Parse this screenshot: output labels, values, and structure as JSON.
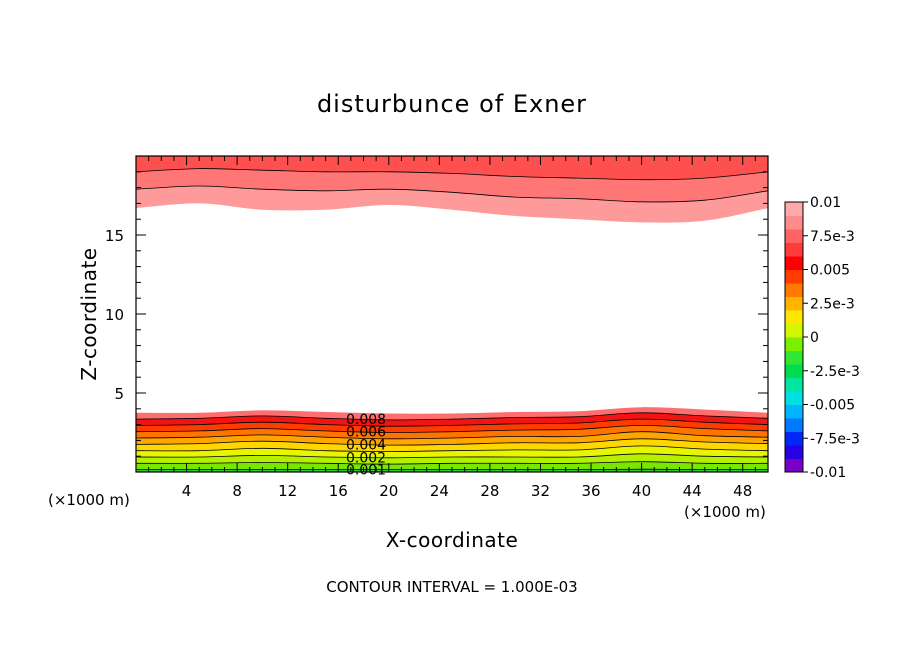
{
  "chart_data": {
    "type": "contour",
    "title": "disturbunce of Exner",
    "xlabel": "X-coordinate",
    "ylabel": "Z-coordinate",
    "x_unit_left": "(×1000 m)",
    "x_unit_right": "(×1000 m)",
    "xlim": [
      0,
      50
    ],
    "ylim": [
      0,
      20
    ],
    "x_ticks": [
      4,
      8,
      12,
      16,
      20,
      24,
      28,
      32,
      36,
      40,
      44,
      48
    ],
    "y_ticks": [
      5,
      10,
      15
    ],
    "footer": "CONTOUR INTERVAL = 1.000E-03",
    "contour_interval": 0.001,
    "contour_labels": [
      "0.008",
      "0.006",
      "0.004",
      "0.002",
      "0.001"
    ],
    "colorbar": {
      "min": -0.01,
      "max": 0.01,
      "tick_labels": [
        "0.01",
        "7.5e-3",
        "0.005",
        "2.5e-3",
        "0",
        "-2.5e-3",
        "-0.005",
        "-7.5e-3",
        "-0.01"
      ],
      "colors": [
        "#7a00c8",
        "#2800e6",
        "#0028f5",
        "#0078ff",
        "#00b4ff",
        "#00e0e0",
        "#00e6a0",
        "#00dc50",
        "#32e632",
        "#78f000",
        "#d2f500",
        "#ffe600",
        "#ffb400",
        "#ff7800",
        "#ff3c00",
        "#ff0000",
        "#ff3c3c",
        "#ff6464",
        "#ff8c8c",
        "#ffaaaa"
      ]
    },
    "bottom_layer": {
      "description_free": true,
      "levels": [
        0.0,
        0.001,
        0.002,
        0.003,
        0.004,
        0.005,
        0.006,
        0.007,
        0.008,
        0.009
      ],
      "fill_colors": [
        "#32c832",
        "#78e600",
        "#b4f000",
        "#e6f500",
        "#ffd700",
        "#ffa500",
        "#ff7300",
        "#ff3c00",
        "#f01414",
        "#ff6e6e"
      ],
      "x": [
        0,
        5,
        10,
        15,
        20,
        25,
        30,
        35,
        40,
        45,
        50
      ],
      "heights": [
        [
          0.15,
          0.15,
          0.15,
          0.15,
          0.15,
          0.15,
          0.15,
          0.15,
          0.18,
          0.15,
          0.15
        ],
        [
          0.55,
          0.55,
          0.6,
          0.55,
          0.5,
          0.55,
          0.55,
          0.55,
          0.65,
          0.55,
          0.55
        ],
        [
          0.95,
          0.95,
          1.05,
          0.95,
          0.9,
          0.95,
          0.95,
          0.95,
          1.15,
          1.0,
          0.95
        ],
        [
          1.35,
          1.35,
          1.5,
          1.35,
          1.3,
          1.35,
          1.4,
          1.4,
          1.65,
          1.45,
          1.35
        ],
        [
          1.75,
          1.8,
          1.95,
          1.8,
          1.7,
          1.75,
          1.85,
          1.85,
          2.1,
          1.9,
          1.8
        ],
        [
          2.15,
          2.2,
          2.35,
          2.2,
          2.1,
          2.15,
          2.25,
          2.25,
          2.55,
          2.3,
          2.2
        ],
        [
          2.55,
          2.6,
          2.75,
          2.6,
          2.5,
          2.55,
          2.65,
          2.7,
          2.95,
          2.75,
          2.6
        ],
        [
          2.95,
          3.0,
          3.15,
          3.0,
          2.9,
          2.95,
          3.05,
          3.1,
          3.35,
          3.15,
          3.0
        ],
        [
          3.35,
          3.4,
          3.55,
          3.4,
          3.3,
          3.35,
          3.45,
          3.5,
          3.75,
          3.55,
          3.4
        ],
        [
          3.75,
          3.75,
          3.9,
          3.8,
          3.7,
          3.7,
          3.8,
          3.85,
          4.1,
          3.95,
          3.75
        ]
      ]
    },
    "top_layer": {
      "levels": [
        0.009,
        0.008,
        0.007
      ],
      "fill_colors": [
        "#ff9a9a",
        "#ff7676",
        "#ff5050"
      ],
      "x": [
        0,
        5,
        10,
        15,
        20,
        25,
        30,
        35,
        40,
        45,
        50
      ],
      "heights": [
        [
          16.7,
          17.0,
          16.6,
          16.6,
          16.9,
          16.6,
          16.2,
          16.0,
          15.8,
          15.9,
          16.7
        ],
        [
          17.9,
          18.1,
          17.9,
          17.8,
          17.9,
          17.7,
          17.4,
          17.3,
          17.1,
          17.2,
          17.8
        ],
        [
          19.0,
          19.2,
          19.1,
          19.0,
          19.0,
          18.9,
          18.7,
          18.6,
          18.5,
          18.6,
          19.0
        ]
      ]
    }
  }
}
